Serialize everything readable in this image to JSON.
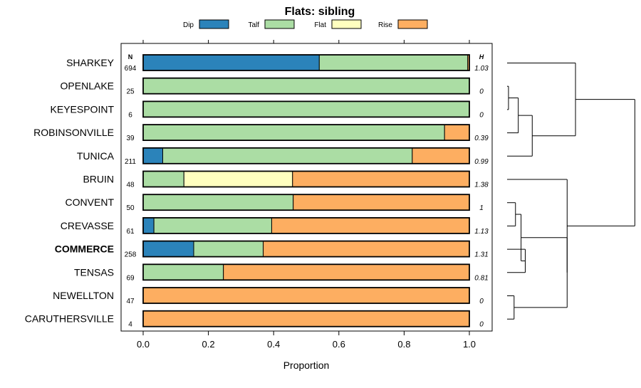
{
  "chart_data": {
    "type": "bar",
    "orientation": "horizontal",
    "stacked": true,
    "title": "Flats: sibling",
    "xlabel": "Proportion",
    "ylabel": "",
    "xlim": [
      -0.04,
      1.07
    ],
    "xticks": [
      "0.0",
      "0.2",
      "0.4",
      "0.6",
      "0.8",
      "1.0"
    ],
    "grid": false,
    "legend_position": "top",
    "legend": [
      {
        "name": "Dip",
        "color": "#2b83ba"
      },
      {
        "name": "Talf",
        "color": "#abdda4"
      },
      {
        "name": "Flat",
        "color": "#ffffbf"
      },
      {
        "name": "Rise",
        "color": "#fdae61"
      }
    ],
    "n_header": "N",
    "h_header": "H",
    "categories": [
      "SHARKEY",
      "OPENLAKE",
      "KEYESPOINT",
      "ROBINSONVILLE",
      "TUNICA",
      "BRUIN",
      "CONVENT",
      "CREVASSE",
      "COMMERCE",
      "TENSAS",
      "NEWELLTON",
      "CARUTHERSVILLE"
    ],
    "highlighted_category": "COMMERCE",
    "n": [
      "694",
      "25",
      "6",
      "39",
      "211",
      "48",
      "50",
      "61",
      "258",
      "69",
      "47",
      "4"
    ],
    "h": [
      "1.03",
      "0",
      "0",
      "0.39",
      "0.99",
      "1.38",
      "1",
      "1.13",
      "1.31",
      "0.81",
      "0",
      "0"
    ],
    "series": [
      {
        "name": "Dip",
        "values": [
          0.54,
          0,
          0,
          0,
          0.06,
          0,
          0,
          0.033,
          0.155,
          0,
          0,
          0
        ]
      },
      {
        "name": "Talf",
        "values": [
          0.455,
          1,
          1,
          0.924,
          0.765,
          0.125,
          0.46,
          0.361,
          0.213,
          0.246,
          0,
          0
        ]
      },
      {
        "name": "Flat",
        "values": [
          0,
          0,
          0,
          0,
          0,
          0.333,
          0,
          0,
          0,
          0,
          0,
          0
        ]
      },
      {
        "name": "Rise",
        "values": [
          0.005,
          0,
          0,
          0.076,
          0.175,
          0.542,
          0.54,
          0.606,
          0.632,
          0.754,
          1,
          1
        ]
      }
    ],
    "dendrogram": {
      "leaf_order": [
        "SHARKEY",
        "OPENLAKE",
        "KEYESPOINT",
        "ROBINSONVILLE",
        "TUNICA",
        "BRUIN",
        "CONVENT",
        "CREVASSE",
        "COMMERCE",
        "TENSAS",
        "NEWELLTON",
        "CARUTHERSVILLE"
      ],
      "merges": [
        {
          "a": "OPENLAKE",
          "b": "KEYESPOINT",
          "height": 0.02
        },
        {
          "a": "m0",
          "b": "ROBINSONVILLE",
          "height": 0.16
        },
        {
          "a": "m1",
          "b": "TUNICA",
          "height": 0.36
        },
        {
          "a": "SHARKEY",
          "b": "m2",
          "height": 0.98
        },
        {
          "a": "CONVENT",
          "b": "CREVASSE",
          "height": 0.12
        },
        {
          "a": "COMMERCE",
          "b": "TENSAS",
          "height": 0.26
        },
        {
          "a": "m4",
          "b": "m5",
          "height": 0.2
        },
        {
          "a": "NEWELLTON",
          "b": "CARUTHERSVILLE",
          "height": 0.1
        },
        {
          "a": "m6",
          "b": "m7",
          "height": 0.86
        },
        {
          "a": "BRUIN",
          "b": "m8",
          "height": 0.86
        },
        {
          "a": "m3",
          "b": "m9",
          "height": 1.83
        }
      ]
    }
  }
}
